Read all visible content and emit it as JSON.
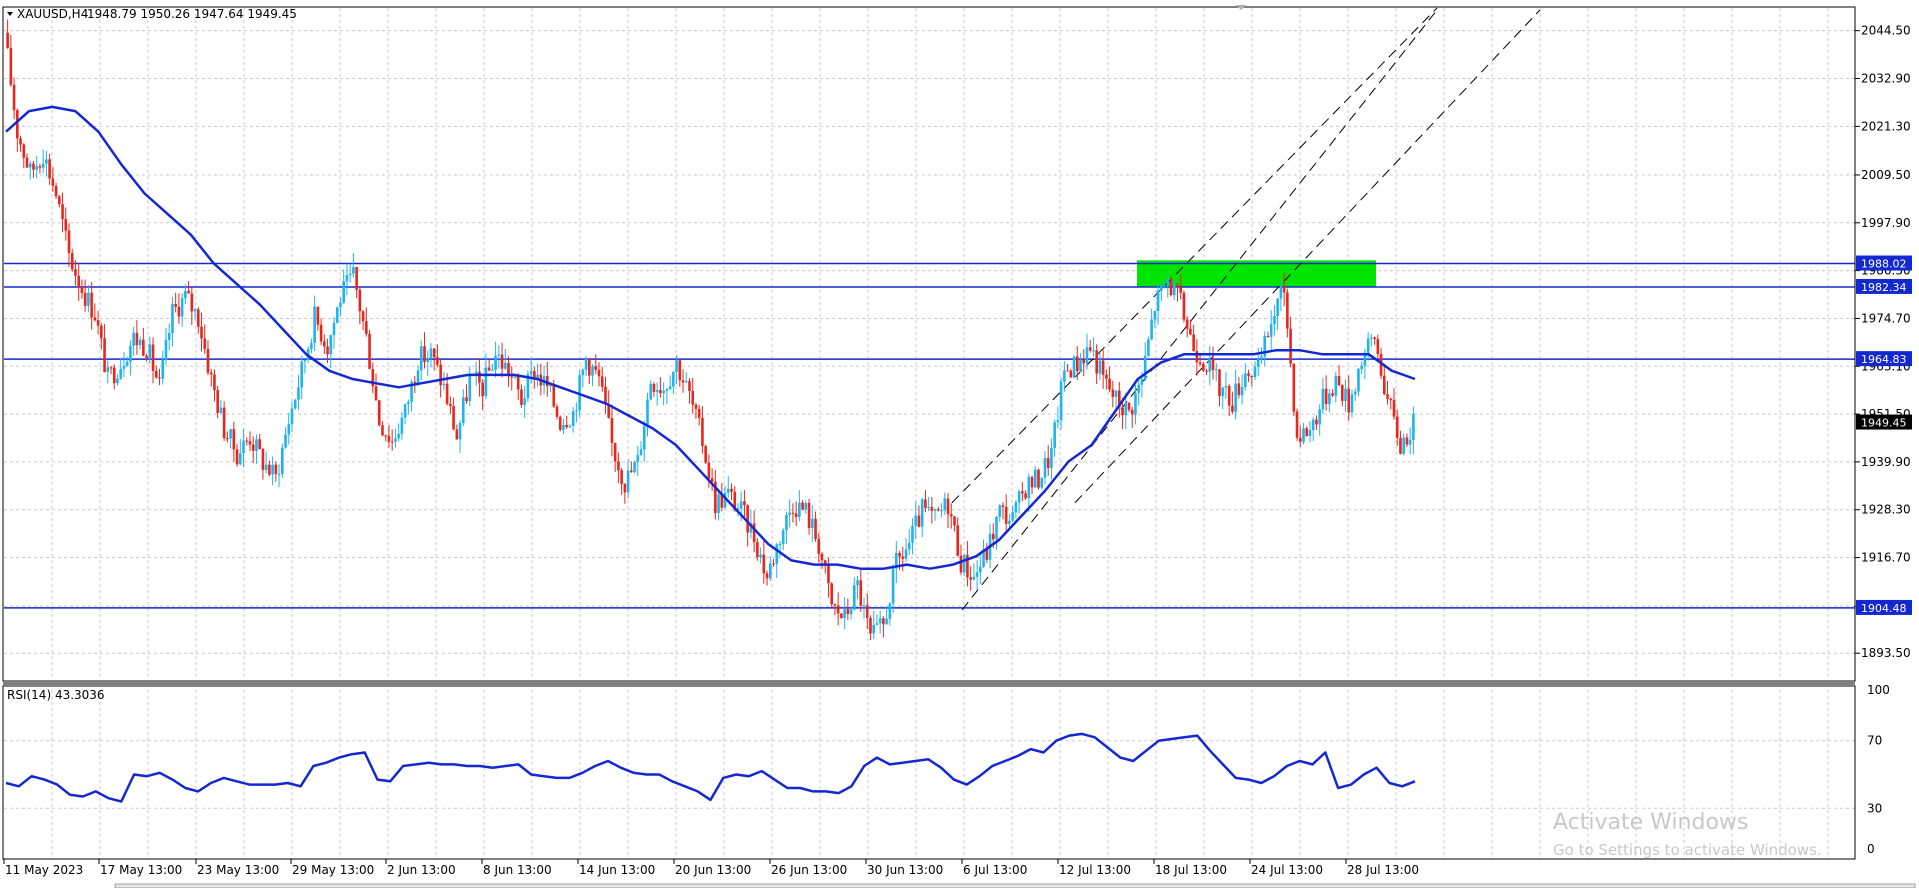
{
  "header": {
    "symbol": "XAUUSD,H4",
    "ohlc": "1948.79 1950.26 1947.64 1949.45"
  },
  "rsi_header": "RSI(14) 43.3036",
  "watermark": {
    "title": "Activate Windows",
    "subtitle": "Go to Settings to activate Windows."
  },
  "colors": {
    "bull": "#1eb4f0",
    "bear": "#e8261c",
    "ma": "#1428d2",
    "level": "#1428d2",
    "zone": "#00e400",
    "grid": "#c8c8c8",
    "tag_bg": "#1428d2",
    "current_bg": "#000000"
  },
  "chart_data": [
    {
      "type": "candlestick",
      "symbol": "XAUUSD",
      "timeframe": "H4",
      "ylim": [
        1887.0,
        2050.0
      ],
      "price_ticks": [
        "2044.50",
        "2032.90",
        "2021.30",
        "2009.50",
        "1997.90",
        "1986.30",
        "1974.70",
        "1963.10",
        "1951.50",
        "1939.90",
        "1928.30",
        "1916.70",
        "1904.90",
        "1893.50"
      ],
      "time_labels": [
        "11 May 2023",
        "17 May 13:00",
        "23 May 13:00",
        "29 May 13:00",
        "2 Jun 13:00",
        "8 Jun 13:00",
        "14 Jun 13:00",
        "20 Jun 13:00",
        "26 Jun 13:00",
        "30 Jun 13:00",
        "6 Jul 13:00",
        "12 Jul 13:00",
        "18 Jul 13:00",
        "24 Jul 13:00",
        "28 Jul 13:00"
      ],
      "levels": [
        {
          "label": "1988.02",
          "price": 1988.02
        },
        {
          "label": "1982.34",
          "price": 1982.34
        },
        {
          "label": "1964.83",
          "price": 1964.83
        },
        {
          "label": "1904.48",
          "price": 1904.48
        }
      ],
      "current_price": "1949.45",
      "zone": {
        "price_top": 1988.8,
        "price_bottom": 1982.4
      },
      "price_path": [
        2044,
        2020,
        2010,
        2015,
        2005,
        1990,
        1982,
        1976,
        1960,
        1964,
        1970,
        1968,
        1958,
        1976,
        1980,
        1975,
        1960,
        1948,
        1942,
        1946,
        1940,
        1936,
        1950,
        1962,
        1975,
        1968,
        1980,
        1985,
        1970,
        1950,
        1945,
        1952,
        1965,
        1966,
        1958,
        1946,
        1960,
        1958,
        1966,
        1962,
        1955,
        1962,
        1958,
        1950,
        1952,
        1965,
        1960,
        1944,
        1935,
        1940,
        1960,
        1958,
        1964,
        1956,
        1945,
        1930,
        1932,
        1928,
        1922,
        1912,
        1922,
        1930,
        1928,
        1920,
        1905,
        1902,
        1910,
        1897,
        1900,
        1915,
        1920,
        1928,
        1926,
        1930,
        1916,
        1912,
        1918,
        1928,
        1926,
        1934,
        1936,
        1942,
        1962,
        1964,
        1968,
        1960,
        1955,
        1952,
        1960,
        1978,
        1984,
        1978,
        1968,
        1964,
        1958,
        1955,
        1962,
        1962,
        1974,
        1982,
        1946,
        1948,
        1955,
        1960,
        1954,
        1965,
        1970,
        1955,
        1944,
        1949
      ],
      "ma_path": [
        2020,
        2025,
        2026,
        2025,
        2020,
        2012,
        2005,
        2000,
        1995,
        1988,
        1983,
        1978,
        1972,
        1966,
        1962,
        1960,
        1959,
        1958,
        1959,
        1960,
        1961,
        1961,
        1961,
        1960,
        1958,
        1956,
        1954,
        1951,
        1948,
        1944,
        1938,
        1932,
        1926,
        1920,
        1916,
        1915,
        1915,
        1914,
        1914,
        1915,
        1914,
        1915,
        1917,
        1921,
        1927,
        1933,
        1940,
        1944,
        1952,
        1960,
        1964,
        1966,
        1966,
        1966,
        1966,
        1967,
        1967,
        1966,
        1966,
        1966,
        1962,
        1960
      ]
    },
    {
      "type": "line",
      "indicator": "RSI",
      "period": 14,
      "value": "43.3036",
      "ylim": [
        0,
        100
      ],
      "ticks": [
        "100",
        "70",
        "30",
        "0"
      ],
      "values": [
        45,
        43,
        49,
        47,
        44,
        38,
        37,
        40,
        36,
        34,
        50,
        49,
        51,
        47,
        42,
        40,
        45,
        48,
        46,
        44,
        44,
        44,
        45,
        43,
        55,
        57,
        60,
        62,
        63,
        47,
        46,
        55,
        56,
        57,
        56,
        56,
        55,
        55,
        54,
        55,
        56,
        50,
        49,
        48,
        48,
        51,
        55,
        58,
        54,
        51,
        50,
        50,
        46,
        43,
        40,
        35,
        48,
        50,
        49,
        52,
        47,
        42,
        42,
        40,
        40,
        39,
        43,
        55,
        60,
        56,
        57,
        58,
        59,
        54,
        47,
        44,
        49,
        55,
        58,
        61,
        65,
        63,
        70,
        73,
        74,
        72,
        66,
        60,
        58,
        64,
        70,
        71,
        72,
        73,
        64,
        56,
        48,
        47,
        45,
        49,
        55,
        58,
        56,
        63,
        42,
        44,
        50,
        54,
        45,
        43,
        46
      ]
    }
  ]
}
